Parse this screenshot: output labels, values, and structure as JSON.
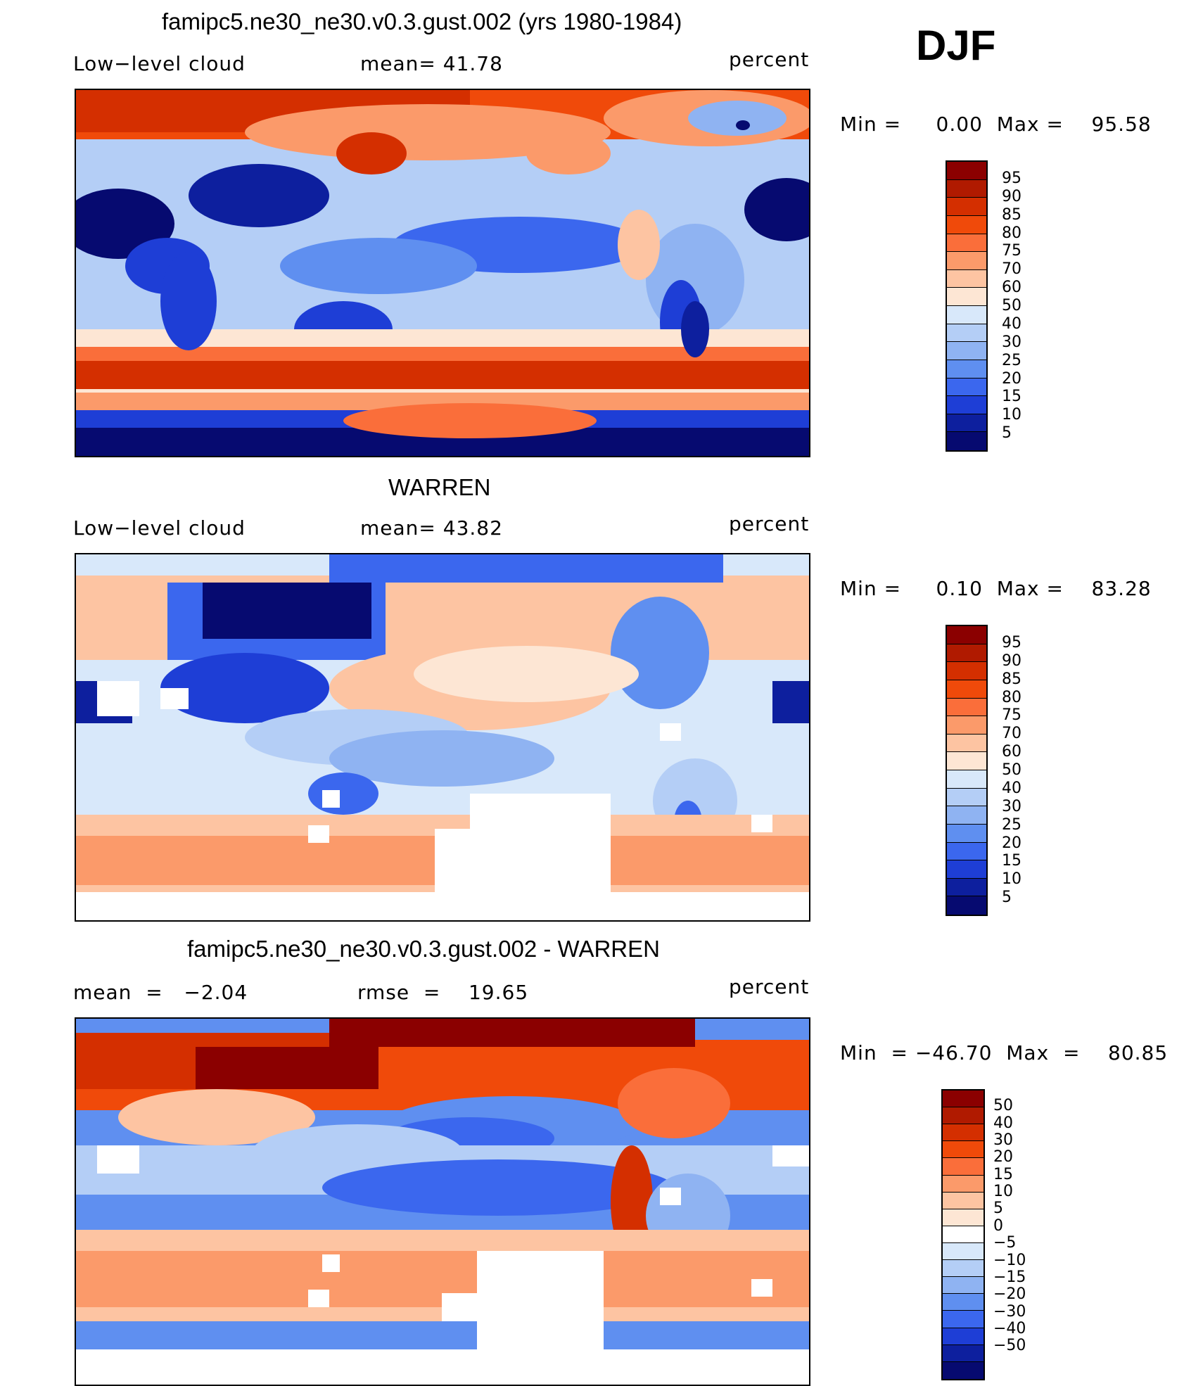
{
  "season": "DJF",
  "panels": [
    {
      "title": "famipc5.ne30_ne30.v0.3.gust.002 (yrs 1980-1984)",
      "left_label": "Low−level cloud",
      "center_label": "mean=   41.78",
      "right_label": "percent",
      "minmax": "Min =     0.00  Max =    95.58",
      "colorbar_ticks": [
        "95",
        "90",
        "85",
        "80",
        "75",
        "70",
        "60",
        "50",
        "40",
        "30",
        "25",
        "20",
        "15",
        "10",
        "5"
      ]
    },
    {
      "title": "WARREN",
      "left_label": "Low−level cloud",
      "center_label": "mean=   43.82",
      "right_label": "percent",
      "minmax": "Min =     0.10  Max =    83.28",
      "colorbar_ticks": [
        "95",
        "90",
        "85",
        "80",
        "75",
        "70",
        "60",
        "50",
        "40",
        "30",
        "25",
        "20",
        "15",
        "10",
        "5"
      ]
    },
    {
      "title": "famipc5.ne30_ne30.v0.3.gust.002 - WARREN",
      "left_label": "mean  =   −2.04",
      "center_label": "rmse  =    19.65",
      "right_label": "percent",
      "minmax": "Min  = −46.70  Max  =    80.85",
      "colorbar_ticks": [
        "50",
        "40",
        "30",
        "20",
        "15",
        "10",
        "5",
        "0",
        "−5",
        "−10",
        "−15",
        "−20",
        "−30",
        "−40",
        "−50"
      ]
    }
  ],
  "colors": {
    "abs_scale": [
      "#8b0000",
      "#b01a00",
      "#d42f00",
      "#f04a0a",
      "#fa6e3a",
      "#fb9a6a",
      "#fdc4a2",
      "#fde6d4",
      "#d8e8fa",
      "#b4cef6",
      "#8fb3f2",
      "#5f8ff0",
      "#3b67ee",
      "#1e3ed6",
      "#0d1f9e",
      "#060a70"
    ],
    "diff_scale": [
      "#8b0000",
      "#b01a00",
      "#d42f00",
      "#f04a0a",
      "#fa6e3a",
      "#fb9a6a",
      "#fdc4a2",
      "#fde6d4",
      "#ffffff",
      "#d8e8fa",
      "#b4cef6",
      "#8fb3f2",
      "#5f8ff0",
      "#3b67ee",
      "#1e3ed6",
      "#0d1f9e",
      "#060a70"
    ]
  }
}
